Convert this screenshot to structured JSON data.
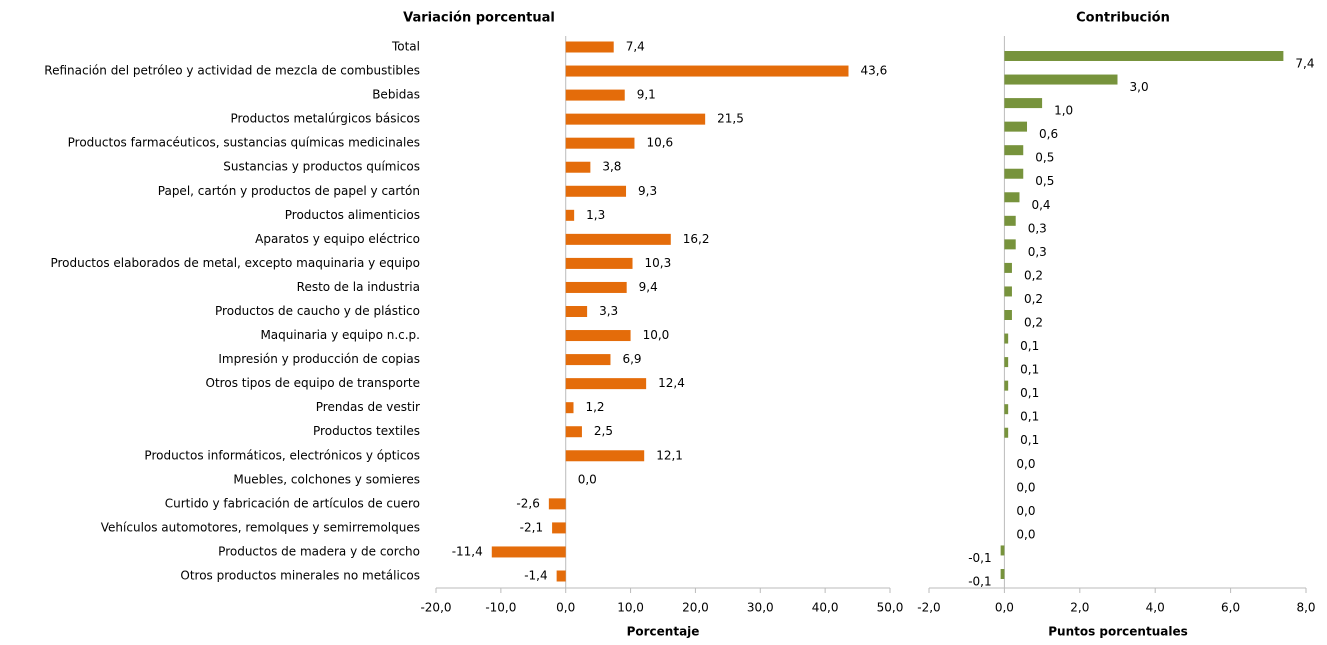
{
  "chart_data": [
    {
      "type": "bar",
      "orientation": "horizontal",
      "title": "Variación porcentual",
      "xlabel": "Porcentaje",
      "color": "#e46c0a",
      "categories": [
        "Total",
        "Refinación del petróleo y actividad de mezcla de combustibles",
        "Bebidas",
        "Productos metalúrgicos básicos",
        "Productos farmacéuticos, sustancias químicas medicinales",
        "Sustancias y productos químicos",
        "Papel, cartón y productos de papel y cartón",
        "Productos alimenticios",
        "Aparatos y equipo eléctrico",
        "Productos elaborados de metal, excepto maquinaria y equipo",
        "Resto de la industria",
        "Productos de caucho y de plástico",
        "Maquinaria y equipo n.c.p.",
        "Impresión y producción de copias",
        "Otros tipos de equipo de transporte",
        "Prendas de vestir",
        "Productos textiles",
        "Productos informáticos, electrónicos y ópticos",
        "Muebles, colchones y somieres",
        "Curtido y fabricación de artículos de cuero",
        "Vehículos automotores, remolques y semirremolques",
        "Productos de madera y de corcho",
        "Otros productos minerales no metálicos"
      ],
      "values": [
        7.4,
        43.6,
        9.1,
        21.5,
        10.6,
        3.8,
        9.3,
        1.3,
        16.2,
        10.3,
        9.4,
        3.3,
        10.0,
        6.9,
        12.4,
        1.2,
        2.5,
        12.1,
        0.0,
        -2.6,
        -2.1,
        -11.4,
        -1.4
      ],
      "value_labels": [
        "7,4",
        "43,6",
        "9,1",
        "21,5",
        "10,6",
        "3,8",
        "9,3",
        "1,3",
        "16,2",
        "10,3",
        "9,4",
        "3,3",
        "10,0",
        "6,9",
        "12,4",
        "1,2",
        "2,5",
        "12,1",
        "0,0",
        "-2,6",
        "-2,1",
        "-11,4",
        "-1,4"
      ],
      "xlim": [
        -20,
        50
      ],
      "xticks": [
        {
          "value": -20,
          "label": "-20,0"
        },
        {
          "value": -10,
          "label": "-10,0"
        },
        {
          "value": 0,
          "label": "0,0"
        },
        {
          "value": 10,
          "label": "10,0"
        },
        {
          "value": 20,
          "label": "20,0"
        },
        {
          "value": 30,
          "label": "30,0"
        },
        {
          "value": 40,
          "label": "40,0"
        },
        {
          "value": 50,
          "label": "50,0"
        }
      ]
    },
    {
      "type": "bar",
      "orientation": "horizontal",
      "title": "Contribución",
      "xlabel": "Puntos porcentuales",
      "color": "#77933c",
      "values": [
        7.4,
        3.0,
        1.0,
        0.6,
        0.5,
        0.5,
        0.4,
        0.3,
        0.3,
        0.2,
        0.2,
        0.2,
        0.1,
        0.1,
        0.1,
        0.1,
        0.1,
        0.0,
        0.0,
        0.0,
        0.0,
        -0.1,
        -0.1
      ],
      "value_labels": [
        "7,4",
        "3,0",
        "1,0",
        "0,6",
        "0,5",
        "0,5",
        "0,4",
        "0,3",
        "0,3",
        "0,2",
        "0,2",
        "0,2",
        "0,1",
        "0,1",
        "0,1",
        "0,1",
        "0,1",
        "0,0",
        "0,0",
        "0,0",
        "0,0",
        "-0,1",
        "-0,1"
      ],
      "xlim": [
        -2,
        8
      ],
      "xticks": [
        {
          "value": -2,
          "label": "-2,0"
        },
        {
          "value": 0,
          "label": "0,0"
        },
        {
          "value": 2,
          "label": "2,0"
        },
        {
          "value": 4,
          "label": "4,0"
        },
        {
          "value": 6,
          "label": "6,0"
        },
        {
          "value": 8,
          "label": "8,0"
        }
      ]
    }
  ]
}
